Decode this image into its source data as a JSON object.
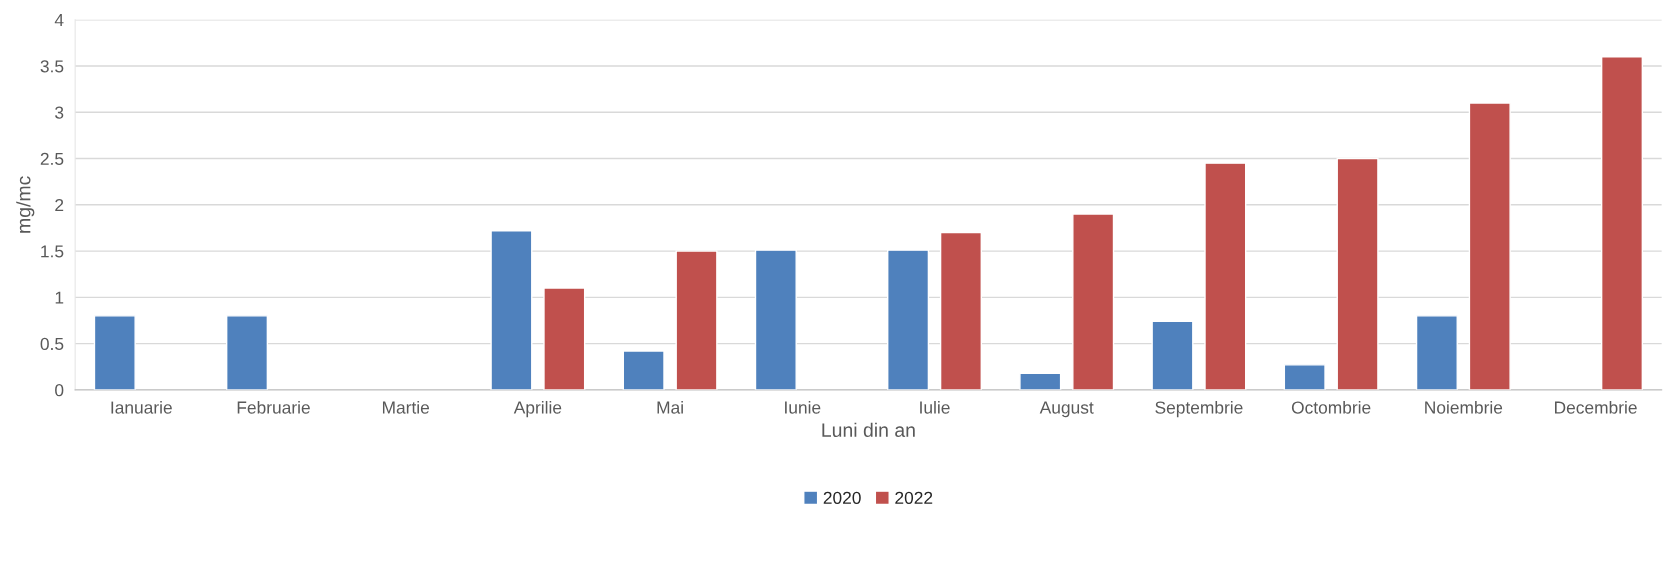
{
  "chart_data": {
    "type": "bar",
    "xlabel": "Luni din an",
    "ylabel": "mg/mc",
    "categories": [
      "Ianuarie",
      "Februarie",
      "Martie",
      "Aprilie",
      "Mai",
      "Iunie",
      "Iulie",
      "August",
      "Septembrie",
      "Octombrie",
      "Noiembrie",
      "Decembrie"
    ],
    "series": [
      {
        "name": "2020",
        "color": "#4f81bd",
        "values": [
          0.8,
          0.8,
          null,
          1.72,
          0.42,
          1.51,
          1.51,
          0.18,
          0.74,
          0.27,
          0.8,
          null
        ]
      },
      {
        "name": "2022",
        "color": "#c0504d",
        "values": [
          null,
          null,
          null,
          1.1,
          1.5,
          null,
          1.7,
          1.9,
          2.45,
          2.5,
          3.1,
          3.6
        ]
      }
    ],
    "ylim": [
      0,
      4
    ],
    "yticks": [
      0,
      0.5,
      1,
      1.5,
      2,
      2.5,
      3,
      3.5,
      4
    ],
    "grid": "y",
    "legend": "bottom"
  }
}
